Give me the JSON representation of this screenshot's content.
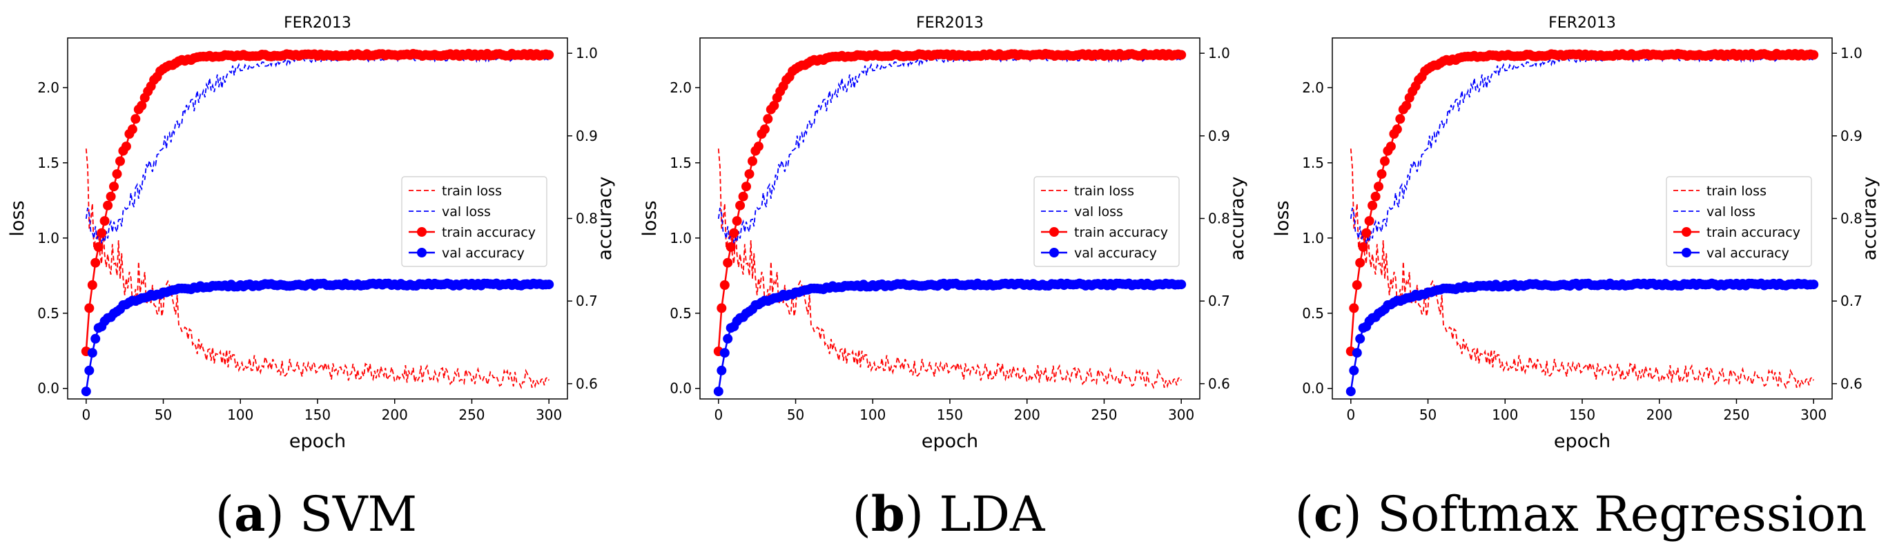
{
  "panels": [
    {
      "letter": "a",
      "name": "SVM"
    },
    {
      "letter": "b",
      "name": "LDA"
    },
    {
      "letter": "c",
      "name": "Softmax Regression"
    }
  ],
  "colors": {
    "train": "#ff0000",
    "val": "#0000ff"
  },
  "chart_data": [
    {
      "type": "line",
      "title": "FER2013",
      "xlabel": "epoch",
      "ylabel": "loss",
      "y2label": "accuracy",
      "xlim": [
        -12,
        312
      ],
      "ylim": [
        -0.07,
        2.33
      ],
      "y2lim": [
        0.5815,
        1.0185
      ],
      "xticks": [
        0,
        50,
        100,
        150,
        200,
        250,
        300
      ],
      "yticks": [
        0.0,
        0.5,
        1.0,
        1.5,
        2.0
      ],
      "y2ticks": [
        0.6,
        0.7,
        0.8,
        0.9,
        1.0
      ],
      "legend_position": "center-right",
      "legend": [
        "train loss",
        "val loss",
        "train accuracy",
        "val accuracy"
      ],
      "series": [
        {
          "name": "train loss",
          "axis": "loss",
          "style": "dashed",
          "x": [
            0,
            2,
            5,
            10,
            15,
            20,
            25,
            30,
            35,
            40,
            45,
            50,
            55,
            60,
            70,
            80,
            90,
            100,
            120,
            150,
            200,
            250,
            300
          ],
          "values": [
            1.47,
            1.2,
            1.05,
            0.95,
            0.88,
            0.9,
            0.72,
            0.7,
            0.68,
            0.62,
            0.58,
            0.62,
            0.55,
            0.45,
            0.3,
            0.22,
            0.2,
            0.18,
            0.15,
            0.12,
            0.1,
            0.08,
            0.06
          ]
        },
        {
          "name": "val loss",
          "axis": "loss",
          "style": "dashed",
          "x": [
            0,
            5,
            10,
            20,
            30,
            40,
            50,
            60,
            70,
            80,
            90,
            100,
            120,
            150,
            200,
            250,
            300
          ],
          "values": [
            1.18,
            1.05,
            1.0,
            1.1,
            1.25,
            1.45,
            1.62,
            1.78,
            1.9,
            2.0,
            2.08,
            2.12,
            2.17,
            2.19,
            2.2,
            2.2,
            2.2
          ]
        },
        {
          "name": "train accuracy",
          "axis": "accuracy",
          "style": "marker",
          "x": [
            0,
            2,
            4,
            6,
            8,
            10,
            15,
            20,
            25,
            30,
            35,
            40,
            45,
            50,
            60,
            70,
            80,
            100,
            150,
            200,
            250,
            300
          ],
          "values": [
            0.64,
            0.69,
            0.72,
            0.745,
            0.765,
            0.785,
            0.82,
            0.855,
            0.885,
            0.91,
            0.935,
            0.955,
            0.97,
            0.982,
            0.99,
            0.994,
            0.996,
            0.997,
            0.998,
            0.998,
            0.998,
            0.998
          ]
        },
        {
          "name": "val accuracy",
          "axis": "accuracy",
          "style": "marker",
          "x": [
            0,
            2,
            4,
            6,
            8,
            10,
            15,
            20,
            25,
            30,
            40,
            50,
            60,
            70,
            80,
            100,
            150,
            200,
            250,
            300
          ],
          "values": [
            0.59,
            0.615,
            0.64,
            0.655,
            0.665,
            0.672,
            0.68,
            0.688,
            0.695,
            0.7,
            0.706,
            0.71,
            0.714,
            0.716,
            0.718,
            0.719,
            0.72,
            0.72,
            0.72,
            0.72
          ]
        }
      ]
    },
    {
      "type": "line",
      "title": "FER2013",
      "xlabel": "epoch",
      "ylabel": "loss",
      "y2label": "accuracy",
      "xlim": [
        -12,
        312
      ],
      "ylim": [
        -0.07,
        2.33
      ],
      "y2lim": [
        0.5815,
        1.0185
      ],
      "xticks": [
        0,
        50,
        100,
        150,
        200,
        250,
        300
      ],
      "yticks": [
        0.0,
        0.5,
        1.0,
        1.5,
        2.0
      ],
      "y2ticks": [
        0.6,
        0.7,
        0.8,
        0.9,
        1.0
      ],
      "legend_position": "center-right",
      "legend": [
        "train loss",
        "val loss",
        "train accuracy",
        "val accuracy"
      ],
      "series": [
        {
          "name": "train loss",
          "axis": "loss",
          "style": "dashed",
          "x": [
            0,
            2,
            5,
            10,
            15,
            20,
            25,
            30,
            35,
            40,
            45,
            50,
            55,
            60,
            70,
            80,
            90,
            100,
            120,
            150,
            200,
            250,
            300
          ],
          "values": [
            1.47,
            1.2,
            1.05,
            0.95,
            0.88,
            0.9,
            0.72,
            0.7,
            0.68,
            0.62,
            0.58,
            0.62,
            0.55,
            0.45,
            0.3,
            0.22,
            0.2,
            0.18,
            0.15,
            0.12,
            0.1,
            0.08,
            0.06
          ]
        },
        {
          "name": "val loss",
          "axis": "loss",
          "style": "dashed",
          "x": [
            0,
            5,
            10,
            20,
            30,
            40,
            50,
            60,
            70,
            80,
            90,
            100,
            120,
            150,
            200,
            250,
            300
          ],
          "values": [
            1.18,
            1.05,
            1.0,
            1.1,
            1.25,
            1.45,
            1.62,
            1.78,
            1.9,
            2.0,
            2.08,
            2.12,
            2.17,
            2.19,
            2.2,
            2.2,
            2.2
          ]
        },
        {
          "name": "train accuracy",
          "axis": "accuracy",
          "style": "marker",
          "x": [
            0,
            2,
            4,
            6,
            8,
            10,
            15,
            20,
            25,
            30,
            35,
            40,
            45,
            50,
            60,
            70,
            80,
            100,
            150,
            200,
            250,
            300
          ],
          "values": [
            0.64,
            0.69,
            0.72,
            0.745,
            0.765,
            0.785,
            0.82,
            0.855,
            0.885,
            0.91,
            0.935,
            0.955,
            0.97,
            0.982,
            0.99,
            0.994,
            0.996,
            0.997,
            0.998,
            0.998,
            0.998,
            0.998
          ]
        },
        {
          "name": "val accuracy",
          "axis": "accuracy",
          "style": "marker",
          "x": [
            0,
            2,
            4,
            6,
            8,
            10,
            15,
            20,
            25,
            30,
            40,
            50,
            60,
            70,
            80,
            100,
            150,
            200,
            250,
            300
          ],
          "values": [
            0.59,
            0.615,
            0.64,
            0.655,
            0.665,
            0.672,
            0.68,
            0.688,
            0.695,
            0.7,
            0.706,
            0.71,
            0.714,
            0.716,
            0.718,
            0.719,
            0.72,
            0.72,
            0.72,
            0.72
          ]
        }
      ]
    },
    {
      "type": "line",
      "title": "FER2013",
      "xlabel": "epoch",
      "ylabel": "loss",
      "y2label": "accuracy",
      "xlim": [
        -12,
        312
      ],
      "ylim": [
        -0.07,
        2.33
      ],
      "y2lim": [
        0.5815,
        1.0185
      ],
      "xticks": [
        0,
        50,
        100,
        150,
        200,
        250,
        300
      ],
      "yticks": [
        0.0,
        0.5,
        1.0,
        1.5,
        2.0
      ],
      "y2ticks": [
        0.6,
        0.7,
        0.8,
        0.9,
        1.0
      ],
      "legend_position": "center-right",
      "legend": [
        "train loss",
        "val loss",
        "train accuracy",
        "val accuracy"
      ],
      "series": [
        {
          "name": "train loss",
          "axis": "loss",
          "style": "dashed",
          "x": [
            0,
            2,
            5,
            10,
            15,
            20,
            25,
            30,
            35,
            40,
            45,
            50,
            55,
            60,
            70,
            80,
            90,
            100,
            120,
            150,
            200,
            250,
            300
          ],
          "values": [
            1.47,
            1.2,
            1.05,
            0.95,
            0.88,
            0.9,
            0.72,
            0.7,
            0.68,
            0.62,
            0.58,
            0.62,
            0.55,
            0.45,
            0.3,
            0.22,
            0.2,
            0.18,
            0.15,
            0.12,
            0.1,
            0.08,
            0.06
          ]
        },
        {
          "name": "val loss",
          "axis": "loss",
          "style": "dashed",
          "x": [
            0,
            5,
            10,
            20,
            30,
            40,
            50,
            60,
            70,
            80,
            90,
            100,
            120,
            150,
            200,
            250,
            300
          ],
          "values": [
            1.18,
            1.05,
            1.0,
            1.1,
            1.25,
            1.45,
            1.62,
            1.78,
            1.9,
            2.0,
            2.08,
            2.12,
            2.17,
            2.19,
            2.2,
            2.2,
            2.2
          ]
        },
        {
          "name": "train accuracy",
          "axis": "accuracy",
          "style": "marker",
          "x": [
            0,
            2,
            4,
            6,
            8,
            10,
            15,
            20,
            25,
            30,
            35,
            40,
            45,
            50,
            60,
            70,
            80,
            100,
            150,
            200,
            250,
            300
          ],
          "values": [
            0.64,
            0.69,
            0.72,
            0.745,
            0.765,
            0.785,
            0.82,
            0.855,
            0.885,
            0.91,
            0.935,
            0.955,
            0.97,
            0.982,
            0.99,
            0.994,
            0.996,
            0.997,
            0.998,
            0.998,
            0.998,
            0.998
          ]
        },
        {
          "name": "val accuracy",
          "axis": "accuracy",
          "style": "marker",
          "x": [
            0,
            2,
            4,
            6,
            8,
            10,
            15,
            20,
            25,
            30,
            40,
            50,
            60,
            70,
            80,
            100,
            150,
            200,
            250,
            300
          ],
          "values": [
            0.59,
            0.615,
            0.64,
            0.655,
            0.665,
            0.672,
            0.68,
            0.688,
            0.695,
            0.7,
            0.706,
            0.71,
            0.714,
            0.716,
            0.718,
            0.719,
            0.72,
            0.72,
            0.72,
            0.72
          ]
        }
      ]
    }
  ]
}
